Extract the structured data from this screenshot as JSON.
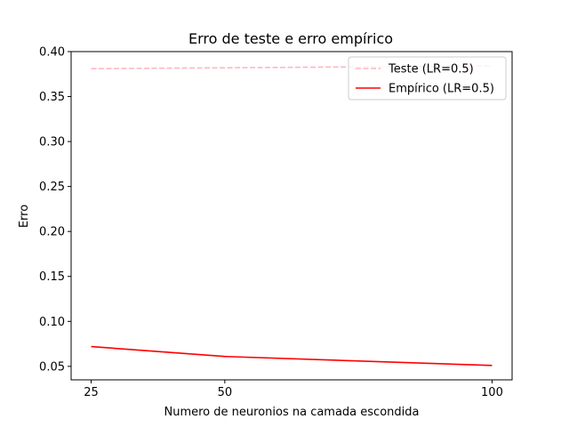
{
  "chart_data": {
    "type": "line",
    "title": "Erro de teste e erro empírico",
    "xlabel": "Numero de neuronios na camada escondida",
    "ylabel": "Erro",
    "x": [
      25,
      50,
      100
    ],
    "xticks": [
      "25",
      "50",
      "100"
    ],
    "yticks": [
      "0.05",
      "0.10",
      "0.15",
      "0.20",
      "0.25",
      "0.30",
      "0.35",
      "0.40"
    ],
    "ylim": [
      0.035,
      0.4
    ],
    "grid": false,
    "legend_position": "top-right",
    "series": [
      {
        "name": "Teste (LR=0.5)",
        "values": [
          0.381,
          0.382,
          0.384
        ],
        "color": "#ffb6c1",
        "dash": "dashed"
      },
      {
        "name": "Empírico (LR=0.5)",
        "values": [
          0.072,
          0.061,
          0.051
        ],
        "color": "#ff0000",
        "dash": "solid"
      }
    ]
  }
}
